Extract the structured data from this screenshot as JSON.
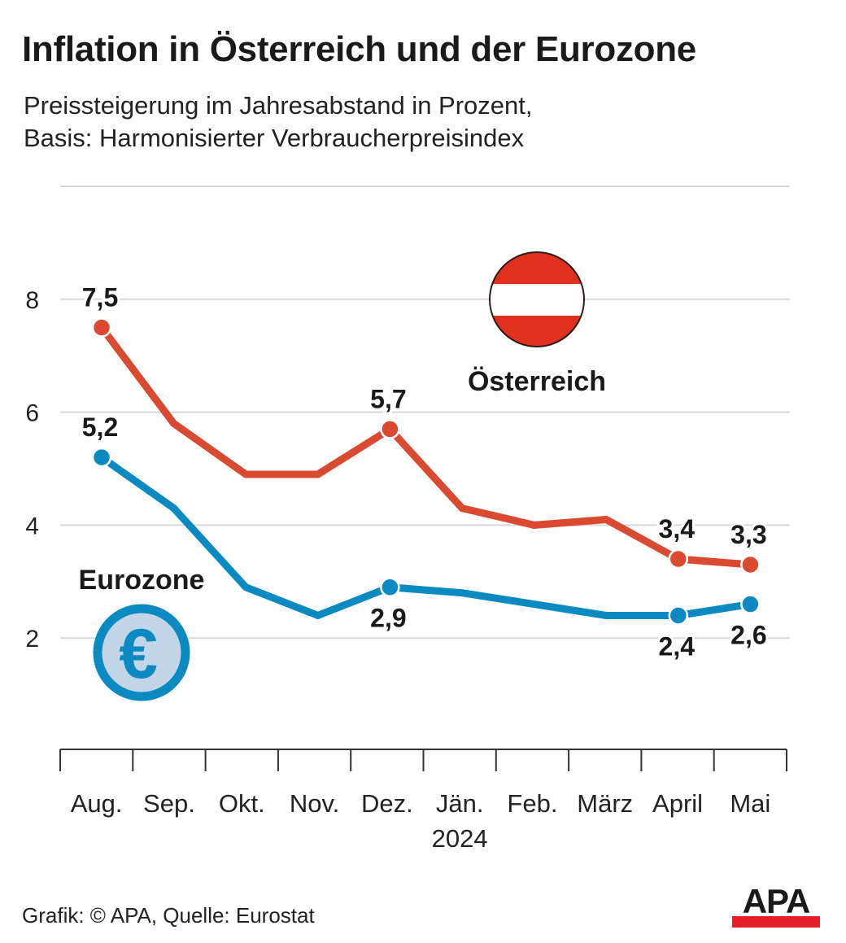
{
  "header": {
    "title": "Inflation in Österreich und der Eurozone",
    "subtitle_line1": "Preissteigerung im Jahresabstand in Prozent,",
    "subtitle_line2": "Basis: Harmonisierter Verbraucherpreisindex"
  },
  "footer": {
    "credit": "Grafik: © APA, Quelle: Eurostat",
    "logo_text": "APA",
    "logo_bar_color": "#e3202a"
  },
  "icons": {
    "austria": "austria-flag-icon",
    "eurozone": "euro-coin-icon",
    "euro_symbol": "€"
  },
  "colors": {
    "austria": "#d94a30",
    "eurozone": "#0a8ac0",
    "flag_red": "#e0301e",
    "coin_fill": "#c3d6e8",
    "grid": "#d9d9d9",
    "axis": "#333333"
  },
  "chart_data": {
    "type": "line",
    "title": "Inflation in Österreich und der Eurozone",
    "subtitle": "Preissteigerung im Jahresabstand in Prozent, Basis: Harmonisierter Verbraucherpreisindex",
    "categories": [
      "Aug.",
      "Sep.",
      "Okt.",
      "Nov.",
      "Dez.",
      "Jän.",
      "Feb.",
      "März",
      "April",
      "Mai"
    ],
    "x_sublabel": {
      "text": "2024",
      "under_category": "Jän."
    },
    "xlabel": "",
    "ylabel": "",
    "ylim": [
      0,
      10
    ],
    "yticks": [
      2,
      4,
      6,
      8
    ],
    "gridlines_at": [
      2,
      4,
      6,
      8,
      10
    ],
    "grid": true,
    "series": [
      {
        "name": "Österreich",
        "color": "#d94a30",
        "values": [
          7.5,
          5.8,
          4.9,
          4.9,
          5.7,
          4.3,
          4.0,
          4.1,
          3.4,
          3.3
        ],
        "labeled_points": [
          {
            "index": 0,
            "label": "7,5",
            "position": "above"
          },
          {
            "index": 4,
            "label": "5,7",
            "position": "above"
          },
          {
            "index": 8,
            "label": "3,4",
            "position": "above"
          },
          {
            "index": 9,
            "label": "3,3",
            "position": "above"
          }
        ]
      },
      {
        "name": "Eurozone",
        "color": "#0a8ac0",
        "values": [
          5.2,
          4.3,
          2.9,
          2.4,
          2.9,
          2.8,
          2.6,
          2.4,
          2.4,
          2.6
        ],
        "labeled_points": [
          {
            "index": 0,
            "label": "5,2",
            "position": "above"
          },
          {
            "index": 4,
            "label": "2,9",
            "position": "below"
          },
          {
            "index": 8,
            "label": "2,4",
            "position": "below"
          },
          {
            "index": 9,
            "label": "2,6",
            "position": "below"
          }
        ]
      }
    ],
    "legend": [
      {
        "name": "Österreich",
        "placement": "top-center",
        "icon": "austria-flag-icon"
      },
      {
        "name": "Eurozone",
        "placement": "left",
        "icon": "euro-coin-icon"
      }
    ],
    "source": "Grafik: © APA, Quelle: Eurostat"
  }
}
